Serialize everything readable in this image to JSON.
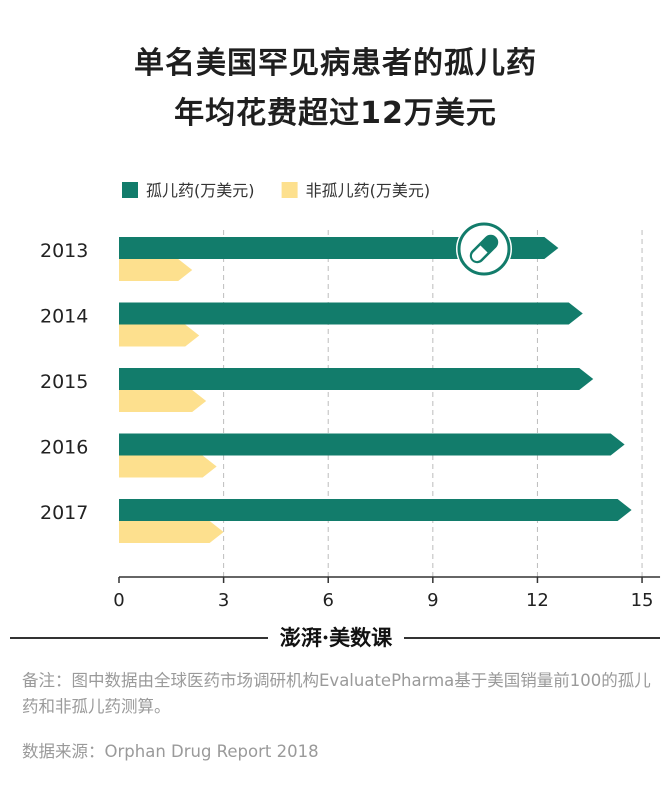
{
  "title_lines": [
    "单名美国罕见病患者的孤儿药",
    "年均花费超过12万美元"
  ],
  "chart_data": {
    "type": "bar",
    "orientation": "horizontal",
    "categories": [
      "2013",
      "2014",
      "2015",
      "2016",
      "2017"
    ],
    "series": [
      {
        "name": "孤儿药(万美元)",
        "color": "#127c6b",
        "values": [
          12.6,
          13.3,
          13.6,
          14.5,
          14.7
        ]
      },
      {
        "name": "非孤儿药(万美元)",
        "color": "#fde08e",
        "values": [
          2.1,
          2.3,
          2.5,
          2.8,
          3.0
        ]
      }
    ],
    "xticks": [
      "0",
      "3",
      "6",
      "9",
      "12",
      "15"
    ],
    "xlim": [
      0,
      15
    ],
    "grid": "vertical-dashed",
    "legend_position": "top-left",
    "icon": "pill-icon"
  },
  "logo": {
    "brand": "澎湃",
    "dot": "·",
    "section": "美数课"
  },
  "note": "备注：图中数据由全球医药市场调研机构EvaluatePharma基于美国销量前100的孤儿药和非孤儿药测算。",
  "source": "数据来源：Orphan Drug Report 2018"
}
